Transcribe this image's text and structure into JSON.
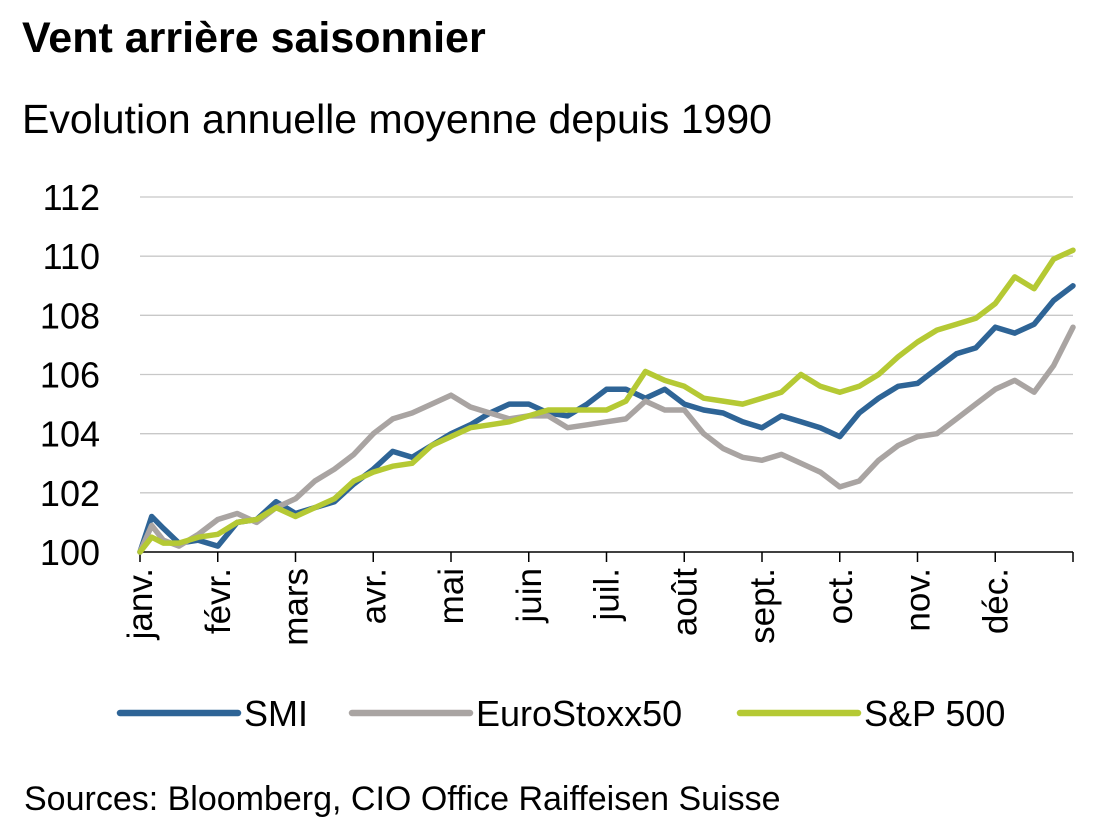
{
  "title": "Vent arrière saisonnier",
  "subtitle": "Evolution annuelle moyenne depuis 1990",
  "source": "Sources: Bloomberg, CIO Office Raiffeisen Suisse",
  "chart_data": {
    "type": "line",
    "title": "Vent arrière saisonnier",
    "subtitle": "Evolution annuelle moyenne depuis 1990",
    "xlabel": "",
    "ylabel": "",
    "ylim": [
      100,
      112
    ],
    "yticks": [
      100,
      102,
      104,
      106,
      108,
      110,
      112
    ],
    "months": [
      "janv.",
      "févr.",
      "mars",
      "avr.",
      "mai",
      "juin",
      "juil.",
      "août",
      "sept.",
      "oct.",
      "nov.",
      "déc."
    ],
    "grid": true,
    "legend_position": "bottom",
    "x": [
      0,
      0.15,
      0.3,
      0.5,
      0.75,
      1.0,
      1.25,
      1.5,
      1.75,
      2.0,
      2.25,
      2.5,
      2.75,
      3.0,
      3.25,
      3.5,
      3.75,
      4.0,
      4.25,
      4.5,
      4.75,
      5.0,
      5.25,
      5.5,
      5.75,
      6.0,
      6.25,
      6.5,
      6.75,
      7.0,
      7.25,
      7.5,
      7.75,
      8.0,
      8.25,
      8.5,
      8.75,
      9.0,
      9.25,
      9.5,
      9.75,
      10.0,
      10.25,
      10.5,
      10.75,
      11.0,
      11.25,
      11.5,
      11.75,
      12.0
    ],
    "series": [
      {
        "name": "SMI",
        "color": "#2e6496",
        "values": [
          100.0,
          101.2,
          100.8,
          100.3,
          100.4,
          100.2,
          101.0,
          101.1,
          101.7,
          101.3,
          101.5,
          101.7,
          102.3,
          102.8,
          103.4,
          103.2,
          103.6,
          104.0,
          104.3,
          104.7,
          105.0,
          105.0,
          104.7,
          104.6,
          105.0,
          105.5,
          105.5,
          105.2,
          105.5,
          105.0,
          104.8,
          104.7,
          104.4,
          104.2,
          104.6,
          104.4,
          104.2,
          103.9,
          104.7,
          105.2,
          105.6,
          105.7,
          106.2,
          106.7,
          106.9,
          107.6,
          107.4,
          107.7,
          108.5,
          109.0
        ]
      },
      {
        "name": "EuroStoxx50",
        "color": "#a9a4a2",
        "values": [
          100.0,
          100.9,
          100.4,
          100.2,
          100.6,
          101.1,
          101.3,
          101.0,
          101.5,
          101.8,
          102.4,
          102.8,
          103.3,
          104.0,
          104.5,
          104.7,
          105.0,
          105.3,
          104.9,
          104.7,
          104.5,
          104.6,
          104.6,
          104.2,
          104.3,
          104.4,
          104.5,
          105.1,
          104.8,
          104.8,
          104.0,
          103.5,
          103.2,
          103.1,
          103.3,
          103.0,
          102.7,
          102.2,
          102.4,
          103.1,
          103.6,
          103.9,
          104.0,
          104.5,
          105.0,
          105.5,
          105.8,
          105.4,
          106.3,
          107.6
        ]
      },
      {
        "name": "S&P 500",
        "color": "#b5c934",
        "values": [
          100.0,
          100.5,
          100.3,
          100.3,
          100.5,
          100.6,
          101.0,
          101.1,
          101.5,
          101.2,
          101.5,
          101.8,
          102.4,
          102.7,
          102.9,
          103.0,
          103.6,
          103.9,
          104.2,
          104.3,
          104.4,
          104.6,
          104.8,
          104.8,
          104.8,
          104.8,
          105.1,
          106.1,
          105.8,
          105.6,
          105.2,
          105.1,
          105.0,
          105.2,
          105.4,
          106.0,
          105.6,
          105.4,
          105.6,
          106.0,
          106.6,
          107.1,
          107.5,
          107.7,
          107.9,
          108.4,
          109.3,
          108.9,
          109.9,
          110.2
        ]
      }
    ]
  }
}
